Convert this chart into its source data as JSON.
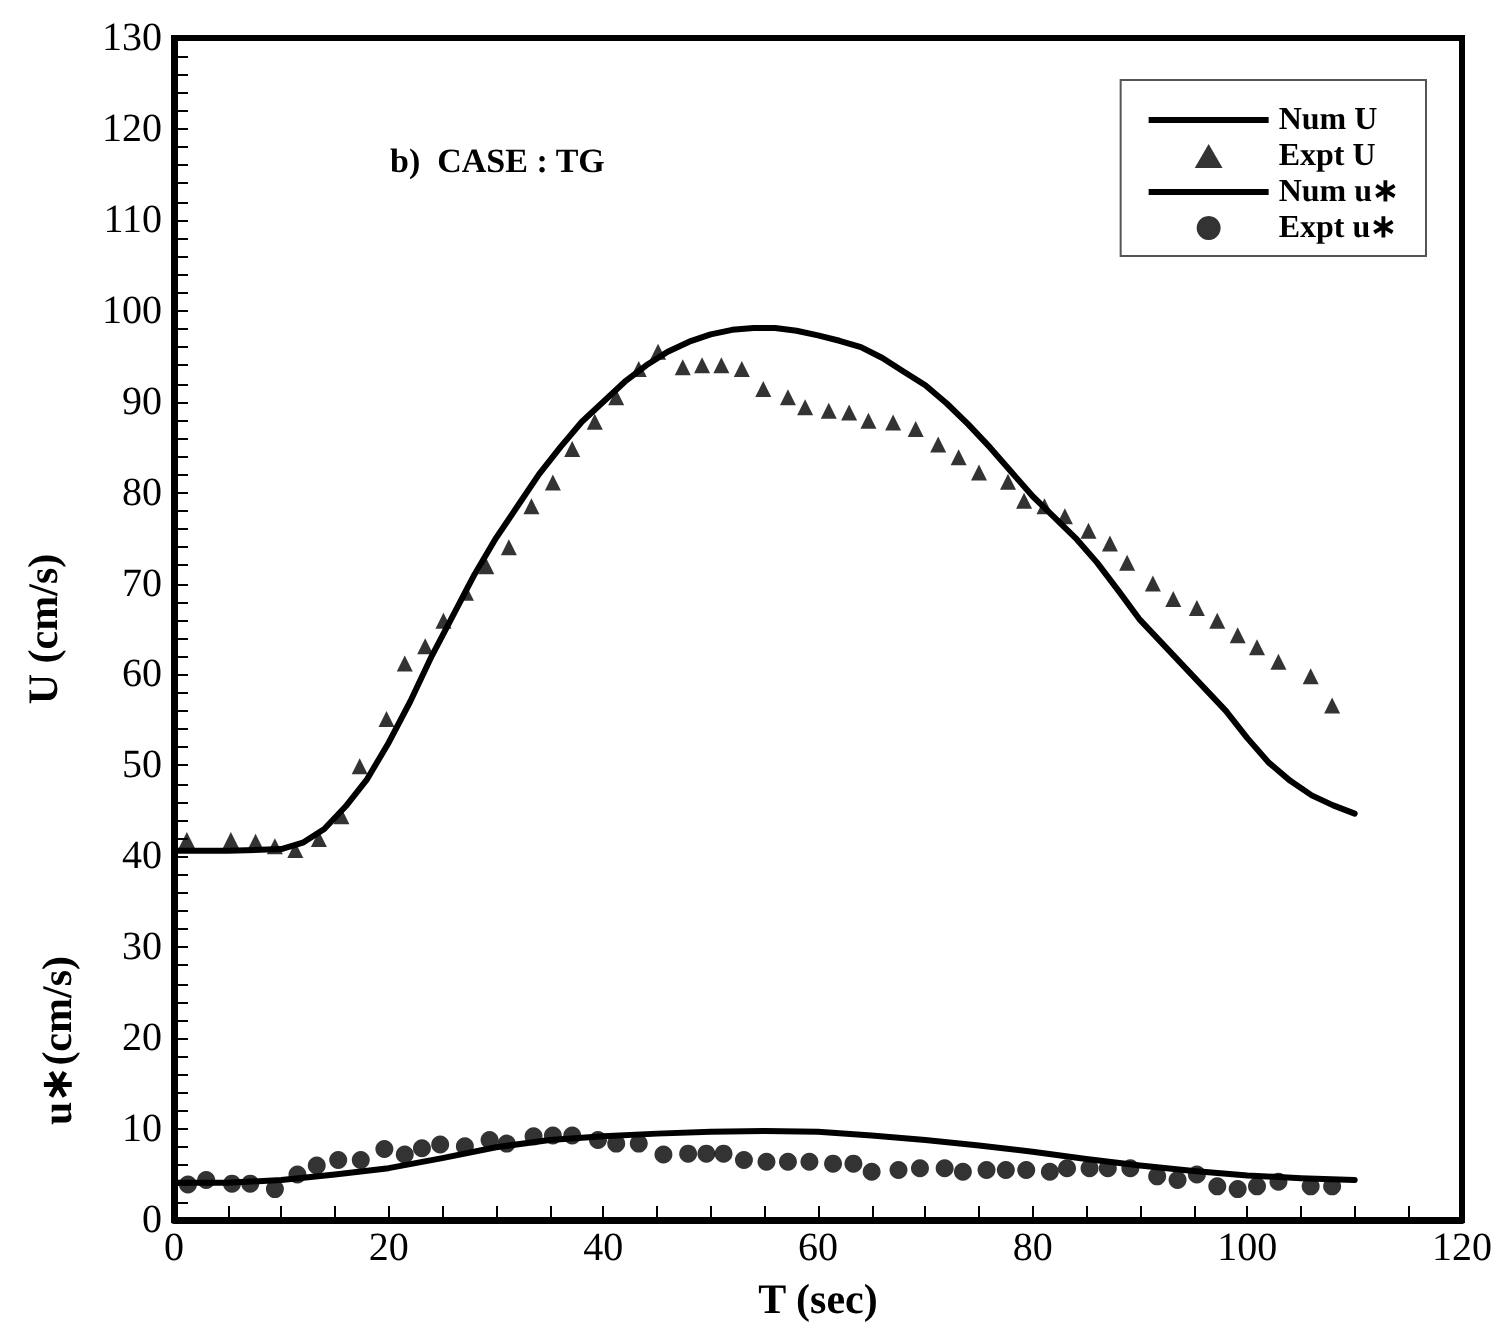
{
  "chart_data": {
    "type": "line",
    "xlabel": "T (sec)",
    "ylabel": "U (cm/s)",
    "annotations": [
      "b)  CASE : TG",
      "u∗(cm/s)"
    ],
    "xlim": [
      0,
      120
    ],
    "xticks": [
      0,
      20,
      40,
      60,
      80,
      100,
      120
    ],
    "ylim": [
      0,
      130
    ],
    "yticks": [
      0,
      10,
      20,
      30,
      40,
      50,
      60,
      70,
      80,
      90,
      100,
      110,
      120,
      130
    ],
    "grid": false,
    "legend": "top right",
    "series": [
      {
        "name": "Num U",
        "color": "#000000",
        "marker": "none",
        "line_style": "solid",
        "x": [
          0,
          5,
          10,
          12,
          14,
          16,
          18,
          20,
          22,
          24,
          26,
          28,
          30,
          32,
          34,
          36,
          38,
          40,
          42,
          44,
          46,
          48,
          50,
          52,
          54,
          56,
          58,
          60,
          62,
          64,
          66,
          68,
          70,
          72,
          74,
          76,
          78,
          80,
          82,
          84,
          86,
          88,
          90,
          92,
          94,
          96,
          98,
          100,
          102,
          104,
          106,
          108,
          110
        ],
        "values": [
          40.6,
          40.6,
          40.8,
          41.5,
          43,
          45.5,
          48.5,
          52.5,
          57,
          62,
          66.5,
          71,
          75,
          78.5,
          82,
          85,
          87.8,
          90,
          92.2,
          94,
          95.5,
          96.6,
          97.4,
          97.9,
          98.1,
          98.1,
          97.8,
          97.3,
          96.7,
          96,
          94.8,
          93.3,
          91.8,
          89.8,
          87.5,
          85,
          82.3,
          79.6,
          77.3,
          75,
          72.3,
          69.2,
          66,
          63.5,
          61,
          58.5,
          56,
          53,
          50.3,
          48.3,
          46.7,
          45.6,
          44.7
        ]
      },
      {
        "name": "Expt U",
        "type": "scatter",
        "color": "#000000",
        "marker": "triangle",
        "x": [
          1.2,
          5.3,
          7.6,
          9.4,
          11.3,
          13.5,
          15.6,
          17.3,
          19.8,
          21.5,
          23.4,
          25.1,
          27.2,
          29.1,
          31.2,
          33.3,
          35.3,
          37.1,
          39.2,
          41.2,
          43.3,
          45.1,
          47.4,
          49.2,
          51.0,
          52.9,
          54.9,
          57.2,
          58.8,
          61.0,
          62.9,
          64.7,
          67.0,
          69.1,
          71.2,
          73.1,
          75.0,
          77.7,
          79.2,
          81.1,
          83.0,
          85.2,
          87.2,
          88.8,
          91.2,
          93.1,
          95.3,
          97.2,
          99.1,
          100.9,
          102.9,
          105.9,
          107.9
        ],
        "values": [
          41.8,
          41.8,
          41.6,
          41.1,
          40.7,
          41.9,
          44.4,
          49.9,
          55.1,
          61.2,
          63.1,
          65.9,
          69.0,
          71.9,
          74.0,
          78.5,
          81.1,
          84.8,
          87.8,
          90.5,
          93.6,
          95.5,
          93.8,
          94.0,
          94.0,
          93.6,
          91.4,
          90.5,
          89.4,
          89.0,
          88.8,
          87.9,
          87.7,
          87.0,
          85.3,
          83.9,
          82.2,
          81.2,
          79.1,
          78.5,
          77.4,
          75.8,
          74.4,
          72.3,
          70.0,
          68.3,
          67.3,
          65.9,
          64.3,
          63.0,
          61.4,
          59.8,
          56.6
        ]
      },
      {
        "name": "Num u∗",
        "color": "#000000",
        "marker": "none",
        "line_style": "solid",
        "x": [
          0,
          5,
          10,
          15,
          20,
          25,
          30,
          35,
          40,
          45,
          50,
          55,
          60,
          65,
          70,
          75,
          80,
          85,
          90,
          95,
          100,
          105,
          110
        ],
        "values": [
          4.1,
          4.1,
          4.4,
          5.0,
          5.7,
          6.8,
          8.0,
          8.8,
          9.2,
          9.5,
          9.7,
          9.8,
          9.7,
          9.3,
          8.8,
          8.2,
          7.5,
          6.7,
          6.0,
          5.4,
          4.9,
          4.6,
          4.4
        ]
      },
      {
        "name": "Expt u∗",
        "type": "scatter",
        "color": "#000000",
        "marker": "circle",
        "x": [
          1.3,
          3.0,
          5.4,
          7.1,
          9.4,
          11.5,
          13.3,
          15.3,
          17.4,
          19.6,
          21.5,
          23.1,
          24.8,
          27.1,
          29.4,
          31.0,
          33.5,
          35.3,
          37.1,
          39.5,
          41.2,
          43.3,
          45.6,
          47.9,
          49.6,
          51.2,
          53.1,
          55.2,
          57.2,
          59.2,
          61.4,
          63.3,
          65.0,
          67.5,
          69.5,
          71.8,
          73.5,
          75.7,
          77.5,
          79.4,
          81.6,
          83.2,
          85.3,
          87.0,
          89.1,
          91.6,
          93.5,
          95.3,
          97.2,
          99.1,
          100.9,
          102.9,
          105.9,
          107.9
        ],
        "values": [
          3.9,
          4.4,
          4.0,
          4.0,
          3.4,
          5.0,
          6.0,
          6.6,
          6.6,
          7.8,
          7.2,
          7.9,
          8.3,
          8.1,
          8.8,
          8.4,
          9.2,
          9.3,
          9.3,
          8.8,
          8.4,
          8.4,
          7.2,
          7.3,
          7.3,
          7.3,
          6.6,
          6.4,
          6.4,
          6.4,
          6.2,
          6.2,
          5.3,
          5.5,
          5.7,
          5.7,
          5.3,
          5.5,
          5.5,
          5.5,
          5.3,
          5.7,
          5.7,
          5.7,
          5.7,
          4.8,
          4.4,
          5.0,
          3.7,
          3.4,
          3.7,
          4.2,
          3.7,
          3.7
        ]
      }
    ]
  }
}
